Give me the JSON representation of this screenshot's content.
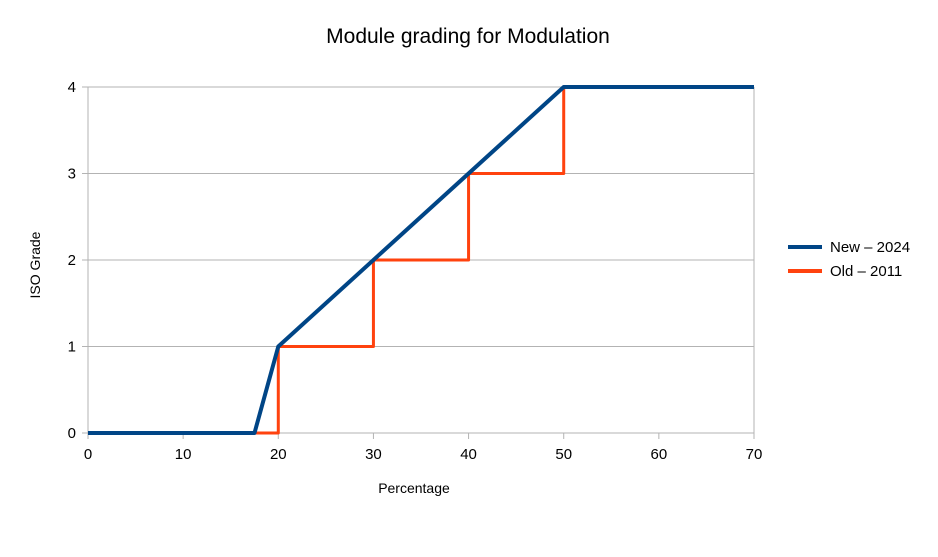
{
  "chart_data": {
    "type": "line",
    "title": "Module grading for Modulation",
    "xlabel": "Percentage",
    "ylabel": "ISO Grade",
    "xlim": [
      0,
      70
    ],
    "ylim": [
      0,
      4
    ],
    "xticks": [
      0,
      10,
      20,
      30,
      40,
      50,
      60,
      70
    ],
    "yticks": [
      0,
      1,
      2,
      3,
      4
    ],
    "grid": "horizontal",
    "legend_position": "right",
    "series": [
      {
        "name": "New – 2024",
        "color": "#004586",
        "points": [
          [
            0,
            0
          ],
          [
            17.5,
            0
          ],
          [
            20,
            1
          ],
          [
            50,
            4
          ],
          [
            70,
            4
          ]
        ]
      },
      {
        "name": "Old – 2011",
        "color": "#ff420e",
        "points": [
          [
            0,
            0
          ],
          [
            20,
            0
          ],
          [
            20,
            1
          ],
          [
            30,
            1
          ],
          [
            30,
            2
          ],
          [
            40,
            2
          ],
          [
            40,
            3
          ],
          [
            50,
            3
          ],
          [
            50,
            4
          ],
          [
            70,
            4
          ]
        ]
      }
    ]
  }
}
